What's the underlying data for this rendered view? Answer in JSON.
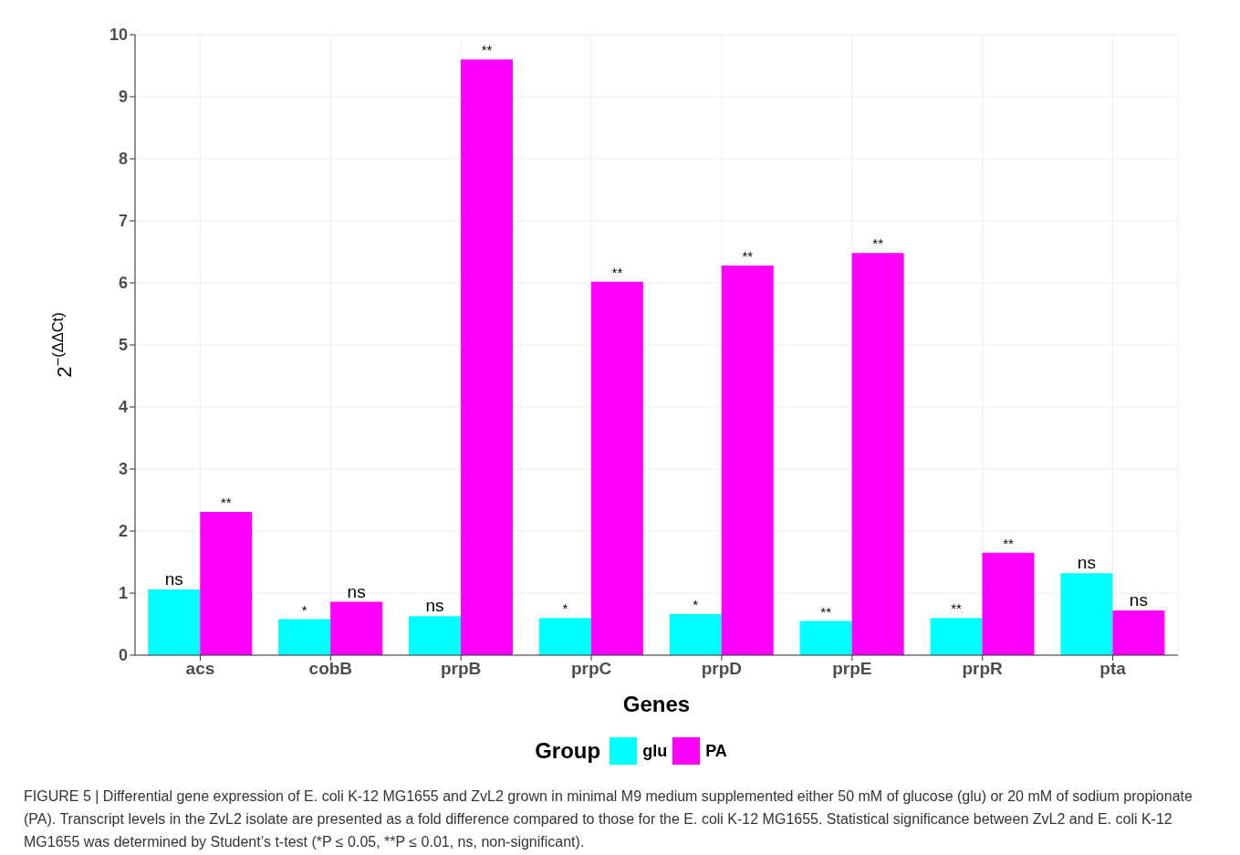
{
  "chart_data": {
    "type": "bar",
    "xlabel": "Genes",
    "ylabel": "2$^{−(ΔΔCt)}$",
    "legend_title": "Group",
    "categories": [
      "acs",
      "cobB",
      "prpB",
      "prpC",
      "prpD",
      "prpE",
      "prpR",
      "pta"
    ],
    "series": [
      {
        "name": "glu",
        "color": "#00ffff",
        "values": [
          1.06,
          0.58,
          0.63,
          0.6,
          0.66,
          0.55,
          0.6,
          1.32
        ]
      },
      {
        "name": "PA",
        "color": "#ff00ff",
        "values": [
          2.31,
          0.86,
          9.6,
          6.02,
          6.28,
          6.48,
          1.65,
          0.72
        ]
      }
    ],
    "ylim": [
      0,
      10
    ],
    "yticks": [
      0,
      1,
      2,
      3,
      4,
      5,
      6,
      7,
      8,
      9,
      10
    ],
    "grid": true,
    "legend": "bottom",
    "annotations": [
      {
        "text": "ns",
        "x": "acs",
        "y": 1.06
      },
      {
        "text": "**",
        "x": "acs",
        "y": 2.31
      },
      {
        "text": "*",
        "x": "cobB",
        "y": 0.58
      },
      {
        "text": "ns",
        "x": "cobB",
        "y": 0.86
      },
      {
        "text": "ns",
        "x": "prpB",
        "y": 0.63
      },
      {
        "text": "**",
        "x": "prpB",
        "y": 9.6
      },
      {
        "text": "*",
        "x": "prpC",
        "y": 0.6
      },
      {
        "text": "**",
        "x": "prpC",
        "y": 6.02
      },
      {
        "text": "*",
        "x": "prpD",
        "y": 0.66
      },
      {
        "text": "**",
        "x": "prpD",
        "y": 6.28
      },
      {
        "text": "**",
        "x": "prpE",
        "y": 0.55
      },
      {
        "text": "**",
        "x": "prpE",
        "y": 6.48
      },
      {
        "text": "**",
        "x": "prpR",
        "y": 0.6
      },
      {
        "text": "**",
        "x": "prpR",
        "y": 1.65
      },
      {
        "text": "ns",
        "x": "pta",
        "y": 1.32
      },
      {
        "text": "ns",
        "x": "pta",
        "y": 0.72
      },
      "FIGURE 5 | Differential gene expression of E. coli K-12 MG1655 and ZvL2 grown in minimal M9 medium supplemented either 50 mM of glucose (glu) or 20 mM of sodium propionate (PA). Transcript levels in the ZvL2 isolate are presented as a fold difference compared to those for the E. coli K-12 MG1655. Statistical significance between ZvL2 and E. coli K-12 MG1655 was determined by Student’s t-test (*P ≤ 0.05, **P ≤ 0.01, ns, non-significant)."
    ]
  }
}
